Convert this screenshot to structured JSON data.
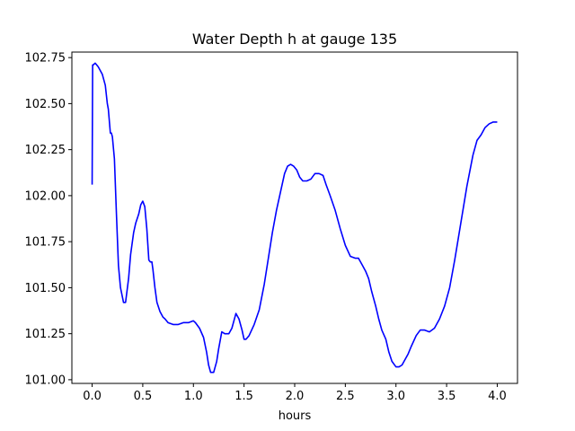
{
  "chart_data": {
    "type": "line",
    "title": "Water Depth h at gauge 135",
    "xlabel": "hours",
    "ylabel": "",
    "xlim": [
      -0.2,
      4.2
    ],
    "ylim": [
      100.98,
      102.78
    ],
    "xticks": [
      0.0,
      0.5,
      1.0,
      1.5,
      2.0,
      2.5,
      3.0,
      3.5,
      4.0
    ],
    "xtick_labels": [
      "0.0",
      "0.5",
      "1.0",
      "1.5",
      "2.0",
      "2.5",
      "3.0",
      "3.5",
      "4.0"
    ],
    "yticks": [
      101.0,
      101.25,
      101.5,
      101.75,
      102.0,
      102.25,
      102.5,
      102.75
    ],
    "ytick_labels": [
      "101.00",
      "101.25",
      "101.50",
      "101.75",
      "102.00",
      "102.25",
      "102.50",
      "102.75"
    ],
    "grid": false,
    "color": "#0000ff",
    "series": [
      {
        "x": [
          0.0,
          0.005,
          0.01,
          0.03,
          0.06,
          0.1,
          0.13,
          0.15,
          0.16,
          0.18,
          0.19,
          0.2,
          0.22,
          0.24,
          0.26,
          0.28,
          0.31,
          0.33,
          0.36,
          0.38,
          0.41,
          0.43,
          0.46,
          0.48,
          0.5,
          0.52,
          0.54,
          0.56,
          0.575,
          0.59,
          0.6,
          0.62,
          0.64,
          0.67,
          0.7,
          0.72,
          0.75,
          0.8,
          0.85,
          0.9,
          0.95,
          1.0,
          1.02,
          1.06,
          1.1,
          1.13,
          1.15,
          1.17,
          1.2,
          1.23,
          1.25,
          1.28,
          1.31,
          1.35,
          1.38,
          1.42,
          1.45,
          1.48,
          1.5,
          1.52,
          1.55,
          1.6,
          1.65,
          1.7,
          1.74,
          1.78,
          1.82,
          1.86,
          1.9,
          1.93,
          1.96,
          1.99,
          2.02,
          2.05,
          2.08,
          2.12,
          2.16,
          2.2,
          2.24,
          2.28,
          2.31,
          2.35,
          2.4,
          2.45,
          2.5,
          2.55,
          2.6,
          2.63,
          2.67,
          2.7,
          2.73,
          2.76,
          2.8,
          2.83,
          2.86,
          2.9,
          2.93,
          2.96,
          3.0,
          3.03,
          3.06,
          3.08,
          3.12,
          3.15,
          3.2,
          3.24,
          3.28,
          3.33,
          3.38,
          3.43,
          3.48,
          3.53,
          3.58,
          3.64,
          3.7,
          3.76,
          3.8,
          3.84,
          3.88,
          3.92,
          3.96,
          4.0
        ],
        "y": [
          102.06,
          102.71,
          102.71,
          102.72,
          102.7,
          102.66,
          102.6,
          102.5,
          102.47,
          102.34,
          102.34,
          102.32,
          102.2,
          101.9,
          101.62,
          101.5,
          101.42,
          101.42,
          101.55,
          101.68,
          101.8,
          101.85,
          101.9,
          101.95,
          101.97,
          101.94,
          101.82,
          101.65,
          101.64,
          101.64,
          101.6,
          101.5,
          101.42,
          101.37,
          101.34,
          101.33,
          101.31,
          101.3,
          101.3,
          101.31,
          101.31,
          101.32,
          101.31,
          101.28,
          101.23,
          101.15,
          101.08,
          101.04,
          101.04,
          101.1,
          101.17,
          101.26,
          101.25,
          101.25,
          101.28,
          101.36,
          101.33,
          101.27,
          101.22,
          101.22,
          101.24,
          101.3,
          101.38,
          101.52,
          101.66,
          101.8,
          101.92,
          102.02,
          102.12,
          102.16,
          102.17,
          102.16,
          102.14,
          102.1,
          102.08,
          102.08,
          102.09,
          102.12,
          102.12,
          102.11,
          102.06,
          102.0,
          101.92,
          101.82,
          101.73,
          101.67,
          101.66,
          101.66,
          101.62,
          101.59,
          101.55,
          101.48,
          101.4,
          101.33,
          101.27,
          101.22,
          101.15,
          101.1,
          101.07,
          101.07,
          101.08,
          101.1,
          101.14,
          101.18,
          101.24,
          101.27,
          101.27,
          101.26,
          101.28,
          101.33,
          101.4,
          101.5,
          101.65,
          101.85,
          102.05,
          102.22,
          102.3,
          102.33,
          102.37,
          102.39,
          102.4,
          102.4
        ]
      }
    ]
  }
}
